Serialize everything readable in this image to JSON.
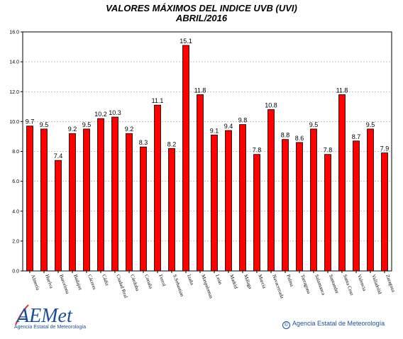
{
  "chart_data": {
    "type": "bar",
    "title": "VALORES MÁXIMOS DEL INDICE UVB (UVI)",
    "subtitle": "ABRIL/2016",
    "xlabel": "",
    "ylabel": "",
    "ylim": [
      0,
      16
    ],
    "yticks": [
      "0.0",
      "2.0",
      "4.0",
      "6.0",
      "8.0",
      "10.0",
      "12.0",
      "14.0",
      "16.0"
    ],
    "grid": true,
    "bar_color": "#ff0000",
    "categories": [
      "Almería",
      "Huelva",
      "Barcelona",
      "Badajoz",
      "Cáceres",
      "Cádiz",
      "Ciudad Real",
      "Córdoba",
      "Coruña",
      "Ferrol",
      "S.Sebastian",
      "Izaña",
      "Maspalomas",
      "León",
      "Madrid",
      "Málaga",
      "Murcia",
      "Navacerrada",
      "Palma",
      "Tarragona",
      "Salamanca",
      "Santander",
      "Santa Cruz",
      "Valencia",
      "Valladolid",
      "Zaragoza"
    ],
    "values": [
      9.7,
      9.5,
      7.4,
      9.2,
      9.5,
      10.2,
      10.3,
      9.2,
      8.3,
      11.1,
      8.2,
      15.1,
      11.8,
      9.1,
      9.4,
      9.8,
      7.8,
      10.8,
      8.8,
      8.6,
      9.5,
      7.8,
      11.8,
      8.7,
      9.5,
      7.9
    ],
    "value_labels": [
      "9.7",
      "9.5",
      "7.4",
      "9.2",
      "9.5",
      "10.2",
      "10.3",
      "9.2",
      "8.3",
      "11.1",
      "8.2",
      "15.1",
      "11.8",
      "9.1",
      "9.4",
      "9.8",
      "7.8",
      "10.8",
      "8.8",
      "8.6",
      "9.5",
      "7.8",
      "11.8",
      "8.7",
      "9.5",
      "7.9"
    ]
  },
  "logo": {
    "text": "AEMet",
    "subtext": "Agencia Estatal de Meteorología",
    "color": "#1a4f9c"
  },
  "footer": {
    "copyright": "©",
    "text": "Agencia Estatal de Meteorología"
  }
}
